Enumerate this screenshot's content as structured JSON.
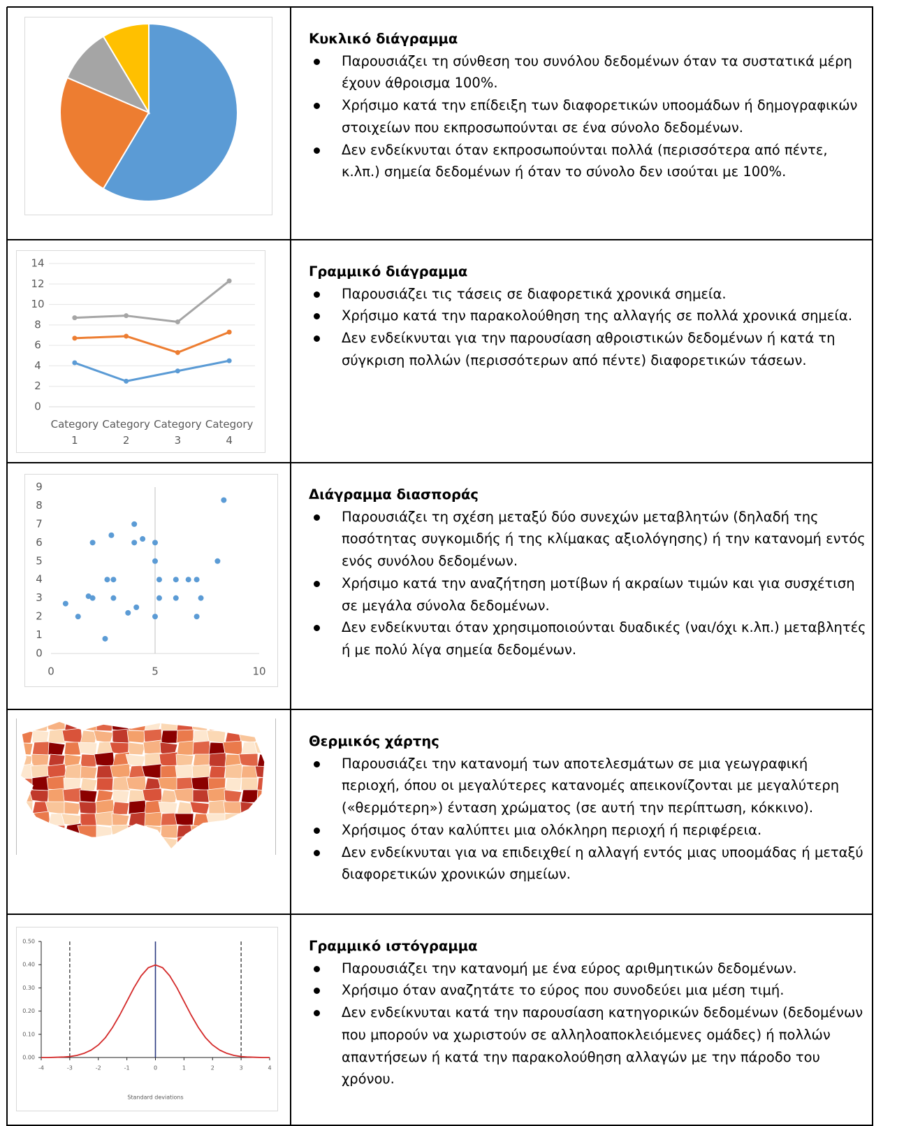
{
  "rows": [
    {
      "chart": {
        "type": "pie",
        "values": [
          8.2,
          3.2,
          1.4,
          1.2
        ],
        "colors": [
          "#5b9bd5",
          "#ed7d31",
          "#a5a5a5",
          "#ffc000"
        ]
      },
      "title": "Κυκλικό διάγραμμα",
      "bullets": [
        "Παρουσιάζει τη σύνθεση του συνόλου δεδομένων όταν τα συστατικά μέρη έχουν άθροισμα 100%.",
        "Χρήσιμο κατά την επίδειξη των διαφορετικών υποομάδων ή δημογραφικών στοιχείων που εκπροσωπούνται σε ένα σύνολο δεδομένων.",
        "Δεν ενδείκνυται όταν εκπροσωπούνται πολλά (περισσότερα από πέντε, κ.λπ.) σημεία δεδομένων ή όταν το σύνολο δεν ισούται με 100%."
      ]
    },
    {
      "chart": {
        "type": "line",
        "stacked": true,
        "markers": true,
        "categories": [
          "Category 1",
          "Category 2",
          "Category 3",
          "Category 4"
        ],
        "series": [
          {
            "color": "#5b9bd5",
            "values": [
              4.3,
              2.5,
              3.5,
              4.5
            ]
          },
          {
            "color": "#ed7d31",
            "values": [
              2.4,
              4.4,
              1.8,
              2.8
            ]
          },
          {
            "color": "#a5a5a5",
            "values": [
              2,
              2,
              3,
              5
            ]
          }
        ],
        "ylim": [
          0,
          14
        ],
        "yticks": [
          0,
          2,
          4,
          6,
          8,
          10,
          12,
          14
        ],
        "grid": true
      },
      "title": "Γραμμικό διάγραμμα",
      "bullets": [
        "Παρουσιάζει τις τάσεις σε διαφορετικά χρονικά σημεία.",
        "Χρήσιμο κατά την παρακολούθηση της αλλαγής σε πολλά χρονικά σημεία.",
        "Δεν ενδείκνυται για την παρουσίαση αθροιστικών δεδομένων ή κατά τη σύγκριση πολλών (περισσότερων από πέντε) διαφορετικών τάσεων."
      ]
    },
    {
      "chart": {
        "type": "scatter",
        "color": "#5b9bd5",
        "x": [
          0.7,
          1.3,
          1.8,
          2,
          2,
          2.6,
          2.7,
          2.9,
          3,
          3,
          3.7,
          4,
          4,
          4.1,
          4.4,
          5,
          5,
          5,
          5.2,
          5.2,
          6,
          6,
          6.6,
          7,
          7,
          7.2,
          8,
          8.3
        ],
        "values": [
          2.7,
          2,
          3.1,
          3,
          6,
          0.8,
          4,
          6.4,
          4,
          3,
          2.2,
          7,
          6,
          2.5,
          6.2,
          6,
          5,
          2,
          4,
          3,
          4,
          3,
          4,
          4,
          2,
          3,
          5,
          8.3
        ],
        "xlim": [
          0,
          10
        ],
        "xticks": [
          0,
          5,
          10
        ],
        "ylim": [
          0,
          9
        ],
        "yticks": [
          0,
          1,
          2,
          3,
          4,
          5,
          6,
          7,
          8,
          9
        ],
        "ycross": 5
      },
      "title": "Διάγραμμα διασποράς",
      "bullets": [
        "Παρουσιάζει τη σχέση μεταξύ δύο συνεχών μεταβλητών (δηλαδή της ποσότητας συγκομιδής ή της κλίμακας αξιολόγησης) ή την κατανομή εντός ενός συνόλου δεδομένων.",
        "Χρήσιμο κατά την αναζήτηση μοτίβων ή ακραίων τιμών και για συσχέτιση σε μεγάλα σύνολα δεδομένων.",
        "Δεν ενδείκνυται όταν χρησιμοποιούνται δυαδικές (ναι/όχι κ.λπ.) μεταβλητές ή με πολύ λίγα σημεία δεδομένων."
      ]
    },
    {
      "chart": {
        "type": "map"
      },
      "title": "Θερμικός χάρτης",
      "bullets": [
        "Παρουσιάζει την κατανομή των αποτελεσμάτων σε μια γεωγραφική περιοχή, όπου οι μεγαλύτερες κατανομές απεικονίζονται με μεγαλύτερη («θερμότερη») ένταση χρώματος (σε αυτή την περίπτωση, κόκκινο).",
        "Χρήσιμος όταν καλύπτει μια ολόκληρη περιοχή ή περιφέρεια.",
        "Δεν ενδείκνυται για να επιδειχθεί η αλλαγή εντός μιας υποομάδας ή μεταξύ διαφορετικών χρονικών σημείων."
      ]
    },
    {
      "chart": {
        "type": "line",
        "color": "#d42a2a",
        "x": [
          -4,
          -3.75,
          -3.5,
          -3.25,
          -3,
          -2.75,
          -2.5,
          -2.25,
          -2,
          -1.75,
          -1.5,
          -1.25,
          -1,
          -0.75,
          -0.5,
          -0.25,
          0,
          0.25,
          0.5,
          0.75,
          1,
          1.25,
          1.5,
          1.75,
          2,
          2.25,
          2.5,
          2.75,
          3,
          3.25,
          3.5,
          3.75,
          4
        ],
        "values": [
          0,
          0,
          0.001,
          0.002,
          0.004,
          0.009,
          0.018,
          0.032,
          0.054,
          0.086,
          0.13,
          0.183,
          0.242,
          0.301,
          0.352,
          0.387,
          0.399,
          0.387,
          0.352,
          0.301,
          0.242,
          0.183,
          0.13,
          0.086,
          0.054,
          0.032,
          0.018,
          0.009,
          0.004,
          0.002,
          0.001,
          0,
          0
        ],
        "xlim": [
          -4,
          4
        ],
        "xticks": [
          -4,
          -3,
          -2,
          -1,
          0,
          1,
          2,
          3,
          4
        ],
        "ylim": [
          0,
          0.5
        ],
        "yticks": [
          {
            "value": 0,
            "label": "0.00"
          },
          {
            "value": 0.1,
            "label": "0.10"
          },
          {
            "value": 0.2,
            "label": "0.20"
          },
          {
            "value": 0.3,
            "label": "0.30"
          },
          {
            "value": 0.4,
            "label": "0.40"
          },
          {
            "value": 0.5,
            "label": "0.50"
          }
        ],
        "xlabel": "Standard deviations",
        "vlines": [
          -3,
          0,
          3
        ]
      },
      "title": "Γραμμικό ιστόγραμμα",
      "bullets": [
        "Παρουσιάζει την κατανομή με ένα εύρος αριθμητικών δεδομένων.",
        "Χρήσιμο όταν αναζητάτε το εύρος που συνοδεύει μια μέση τιμή.",
        "Δεν ενδείκνυται κατά την παρουσίαση κατηγορικών δεδομένων (δεδομένων που μπορούν να χωριστούν σε αλληλοαποκλειόμενες ομάδες) ή πολλών απαντήσεων ή κατά την παρακολούθηση αλλαγών με την πάροδο του χρόνου."
      ]
    }
  ]
}
